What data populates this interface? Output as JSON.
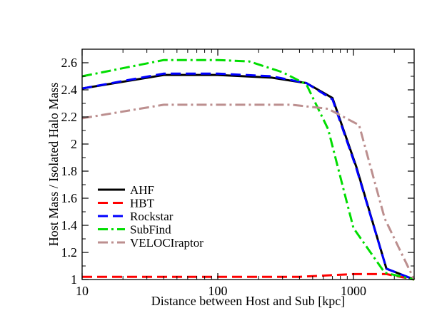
{
  "chart_data": {
    "type": "line",
    "title": "",
    "xlabel": "Distance between Host and Sub [kpc]",
    "ylabel": "Host Mass / Isolated Halo Mass",
    "xscale": "log",
    "xlim": [
      10,
      2800
    ],
    "ylim": [
      1.0,
      2.7
    ],
    "xticks": [
      10,
      100,
      1000
    ],
    "xtick_labels": [
      "10",
      "100",
      "1000"
    ],
    "yticks": [
      1.0,
      1.2,
      1.4,
      1.6,
      1.8,
      2.0,
      2.2,
      2.4,
      2.6
    ],
    "ytick_labels": [
      "1",
      "1.2",
      "1.4",
      "1.6",
      "1.8",
      "2",
      "2.2",
      "2.4",
      "2.6"
    ],
    "grid": false,
    "legend_position": "lower-left",
    "series": [
      {
        "name": "AHF",
        "color": "#000000",
        "dash": "solid",
        "x": [
          10,
          40,
          100,
          250,
          450,
          700,
          1050,
          1750,
          2800
        ],
        "y": [
          2.41,
          2.51,
          2.51,
          2.49,
          2.45,
          2.34,
          1.83,
          1.08,
          1.0
        ]
      },
      {
        "name": "HBT",
        "color": "#ff0000",
        "dash": "dashed",
        "x": [
          10,
          100,
          400,
          1000,
          1750,
          2800
        ],
        "y": [
          1.02,
          1.02,
          1.02,
          1.04,
          1.04,
          1.0
        ]
      },
      {
        "name": "Rockstar",
        "color": "#0000ff",
        "dash": "dashed",
        "x": [
          10,
          40,
          100,
          250,
          450,
          700,
          1050,
          1750,
          2800
        ],
        "y": [
          2.41,
          2.52,
          2.52,
          2.5,
          2.45,
          2.33,
          1.82,
          1.08,
          1.0
        ]
      },
      {
        "name": "SubFind",
        "color": "#00dd00",
        "dash": "dashdot",
        "x": [
          10,
          40,
          100,
          170,
          300,
          450,
          650,
          1000,
          1700,
          2800
        ],
        "y": [
          2.5,
          2.62,
          2.62,
          2.61,
          2.53,
          2.44,
          2.11,
          1.38,
          1.05,
          1.0
        ]
      },
      {
        "name": "VELOCIraptor",
        "color": "#bc8f8f",
        "dash": "dashdot",
        "x": [
          10,
          40,
          100,
          350,
          650,
          1100,
          1700,
          2800
        ],
        "y": [
          2.19,
          2.29,
          2.29,
          2.29,
          2.26,
          2.14,
          1.45,
          1.0
        ]
      }
    ]
  }
}
